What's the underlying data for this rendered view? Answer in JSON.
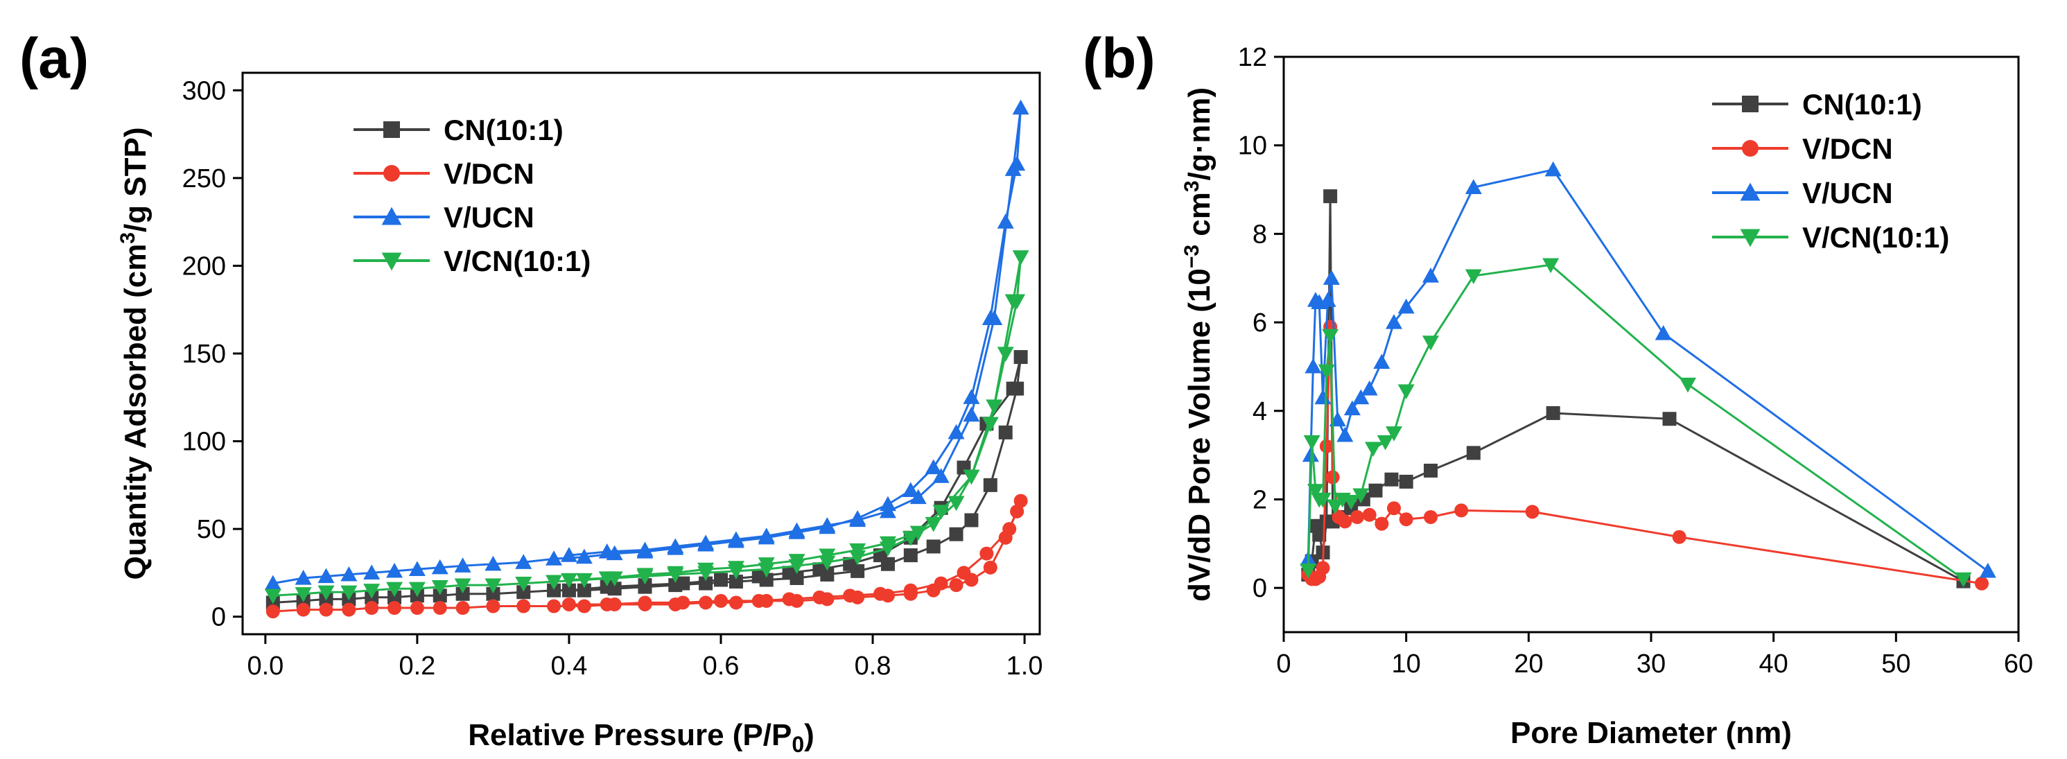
{
  "colors": {
    "CN(10:1)": "#404040",
    "V/DCN": "#ef3b2c",
    "V/UCN": "#1f6fe5",
    "V/CN(10:1)": "#22b24c"
  },
  "chart_data": [
    {
      "panel": "(a)",
      "type": "line",
      "xlabel_main": "Relative Pressure (P/P",
      "xlabel_sub": "0",
      "xlabel_tail": ")",
      "ylabel_main": "Quantity Adsorbed (cm",
      "ylabel_sup": "3",
      "ylabel_tail": "/g STP)",
      "xlim": [
        -0.03,
        1.02
      ],
      "ylim": [
        -10,
        310
      ],
      "xticks": [
        0.0,
        0.2,
        0.4,
        0.6,
        0.8,
        1.0
      ],
      "xtick_labels": [
        "0.0",
        "0.2",
        "0.4",
        "0.6",
        "0.8",
        "1.0"
      ],
      "yticks": [
        0,
        50,
        100,
        150,
        200,
        250,
        300
      ],
      "ytick_labels": [
        "0",
        "50",
        "100",
        "150",
        "200",
        "250",
        "300"
      ],
      "legend_position": "top-left",
      "series": [
        {
          "name": "CN(10:1)",
          "marker": "square",
          "x": [
            0.01,
            0.05,
            0.08,
            0.11,
            0.14,
            0.17,
            0.2,
            0.23,
            0.26,
            0.3,
            0.34,
            0.38,
            0.42,
            0.46,
            0.5,
            0.54,
            0.58,
            0.62,
            0.66,
            0.7,
            0.74,
            0.78,
            0.82,
            0.85,
            0.88,
            0.91,
            0.93,
            0.955,
            0.975,
            0.99,
            0.995,
            0.985,
            0.95,
            0.92,
            0.89,
            0.85,
            0.81,
            0.77,
            0.73,
            0.69,
            0.65,
            0.6,
            0.55,
            0.5,
            0.45,
            0.4
          ],
          "y": [
            8,
            9,
            10,
            10,
            11,
            11,
            12,
            12,
            13,
            13,
            14,
            15,
            15,
            16,
            17,
            18,
            19,
            20,
            21,
            22,
            24,
            26,
            30,
            35,
            40,
            47,
            55,
            75,
            105,
            130,
            148,
            130,
            110,
            85,
            62,
            45,
            35,
            30,
            27,
            25,
            23,
            21,
            19,
            18,
            17,
            15
          ]
        },
        {
          "name": "V/DCN",
          "marker": "circle",
          "x": [
            0.01,
            0.05,
            0.08,
            0.11,
            0.14,
            0.17,
            0.2,
            0.23,
            0.26,
            0.3,
            0.34,
            0.38,
            0.42,
            0.46,
            0.5,
            0.54,
            0.58,
            0.62,
            0.66,
            0.7,
            0.74,
            0.78,
            0.82,
            0.85,
            0.88,
            0.91,
            0.93,
            0.955,
            0.975,
            0.99,
            0.995,
            0.98,
            0.95,
            0.92,
            0.89,
            0.85,
            0.81,
            0.77,
            0.73,
            0.69,
            0.65,
            0.6,
            0.55,
            0.5,
            0.45,
            0.4
          ],
          "y": [
            3,
            4,
            4,
            4,
            5,
            5,
            5,
            5,
            5,
            6,
            6,
            6,
            6,
            7,
            7,
            7,
            8,
            8,
            9,
            9,
            10,
            11,
            12,
            13,
            15,
            18,
            21,
            28,
            45,
            60,
            66,
            50,
            36,
            25,
            19,
            15,
            13,
            12,
            11,
            10,
            9,
            9,
            8,
            8,
            7,
            7
          ]
        },
        {
          "name": "V/UCN",
          "marker": "triangle-up",
          "x": [
            0.01,
            0.05,
            0.08,
            0.11,
            0.14,
            0.17,
            0.2,
            0.23,
            0.26,
            0.3,
            0.34,
            0.38,
            0.42,
            0.46,
            0.5,
            0.54,
            0.58,
            0.62,
            0.66,
            0.7,
            0.74,
            0.78,
            0.82,
            0.85,
            0.88,
            0.91,
            0.93,
            0.955,
            0.975,
            0.99,
            0.995,
            0.985,
            0.96,
            0.93,
            0.89,
            0.86,
            0.82,
            0.78,
            0.74,
            0.7,
            0.66,
            0.62,
            0.58,
            0.54,
            0.5,
            0.45,
            0.4
          ],
          "y": [
            19,
            22,
            23,
            24,
            25,
            26,
            27,
            28,
            29,
            30,
            31,
            33,
            34,
            36,
            37,
            39,
            41,
            43,
            45,
            48,
            51,
            56,
            64,
            72,
            85,
            105,
            125,
            170,
            225,
            258,
            290,
            255,
            170,
            115,
            80,
            68,
            60,
            55,
            52,
            49,
            46,
            44,
            42,
            40,
            38,
            37,
            35
          ]
        },
        {
          "name": "V/CN(10:1)",
          "marker": "triangle-down",
          "x": [
            0.01,
            0.05,
            0.08,
            0.11,
            0.14,
            0.17,
            0.2,
            0.23,
            0.26,
            0.3,
            0.34,
            0.38,
            0.42,
            0.46,
            0.5,
            0.54,
            0.58,
            0.62,
            0.66,
            0.7,
            0.74,
            0.78,
            0.82,
            0.85,
            0.88,
            0.91,
            0.93,
            0.955,
            0.975,
            0.99,
            0.995,
            0.985,
            0.96,
            0.93,
            0.89,
            0.86,
            0.82,
            0.78,
            0.74,
            0.7,
            0.66,
            0.62,
            0.58,
            0.54,
            0.5,
            0.45,
            0.4
          ],
          "y": [
            12,
            13,
            14,
            14,
            15,
            16,
            16,
            17,
            18,
            18,
            19,
            20,
            21,
            22,
            23,
            24,
            25,
            26,
            27,
            29,
            31,
            34,
            39,
            45,
            53,
            65,
            80,
            110,
            150,
            180,
            205,
            180,
            120,
            80,
            60,
            48,
            42,
            38,
            35,
            32,
            30,
            28,
            27,
            25,
            24,
            22,
            21
          ]
        }
      ]
    },
    {
      "panel": "(b)",
      "type": "line",
      "xlabel_main": "Pore Diameter (nm)",
      "ylabel_main": "dV/dD Pore Volume (10",
      "ylabel_sup": "−3",
      "ylabel_mid": " cm",
      "ylabel_sup2": "3",
      "ylabel_tail": "/g·nm)",
      "xlim": [
        0,
        60
      ],
      "ylim": [
        -1,
        12
      ],
      "xticks": [
        0,
        10,
        20,
        30,
        40,
        50,
        60
      ],
      "xtick_labels": [
        "0",
        "10",
        "20",
        "30",
        "40",
        "50",
        "60"
      ],
      "yticks": [
        0,
        2,
        4,
        6,
        8,
        10,
        12
      ],
      "ytick_labels": [
        "0",
        "2",
        "4",
        "6",
        "8",
        "10",
        "12"
      ],
      "legend_position": "top-right",
      "series": [
        {
          "name": "CN(10:1)",
          "marker": "square",
          "x": [
            2.0,
            2.3,
            2.6,
            2.9,
            3.2,
            3.5,
            3.8,
            4.0,
            4.5,
            5.5,
            6.5,
            7.5,
            8.8,
            10,
            12,
            15.5,
            22,
            31.5,
            55.5
          ],
          "y": [
            0.3,
            0.6,
            1.4,
            1.2,
            0.8,
            1.5,
            8.85,
            1.5,
            1.6,
            1.8,
            2.0,
            2.2,
            2.45,
            2.4,
            2.65,
            3.05,
            3.95,
            3.82,
            0.15
          ]
        },
        {
          "name": "V/DCN",
          "marker": "circle",
          "x": [
            2.0,
            2.3,
            2.6,
            2.9,
            3.2,
            3.5,
            3.8,
            4.0,
            4.5,
            5.0,
            6.0,
            7.0,
            8.0,
            9.0,
            10,
            12,
            14.5,
            20.3,
            32.3,
            57
          ],
          "y": [
            0.3,
            0.2,
            0.2,
            0.25,
            0.45,
            3.2,
            5.9,
            2.5,
            1.6,
            1.5,
            1.6,
            1.65,
            1.45,
            1.8,
            1.55,
            1.6,
            1.75,
            1.72,
            1.15,
            0.1
          ]
        },
        {
          "name": "V/UCN",
          "marker": "triangle-up",
          "x": [
            2.0,
            2.2,
            2.4,
            2.6,
            2.9,
            3.2,
            3.6,
            3.9,
            4.4,
            5.0,
            5.6,
            6.3,
            7.0,
            8.0,
            9.0,
            10,
            12,
            15.5,
            22,
            31,
            57.5
          ],
          "y": [
            0.65,
            3.0,
            5.0,
            6.5,
            6.45,
            4.3,
            6.5,
            7.0,
            3.8,
            3.45,
            4.05,
            4.3,
            4.5,
            5.1,
            6.0,
            6.35,
            7.05,
            9.05,
            9.45,
            5.75,
            0.38
          ]
        },
        {
          "name": "V/CN(10:1)",
          "marker": "triangle-down",
          "x": [
            2.0,
            2.3,
            2.6,
            2.9,
            3.2,
            3.5,
            3.8,
            4.2,
            4.8,
            5.5,
            6.3,
            7.3,
            8.3,
            9.0,
            10,
            12,
            15.5,
            21.8,
            33,
            55.5
          ],
          "y": [
            0.4,
            3.3,
            2.2,
            2.0,
            2.0,
            4.9,
            5.7,
            1.85,
            2.0,
            1.95,
            2.1,
            3.15,
            3.3,
            3.5,
            4.45,
            5.55,
            7.05,
            7.3,
            4.6,
            0.2
          ]
        }
      ]
    }
  ]
}
